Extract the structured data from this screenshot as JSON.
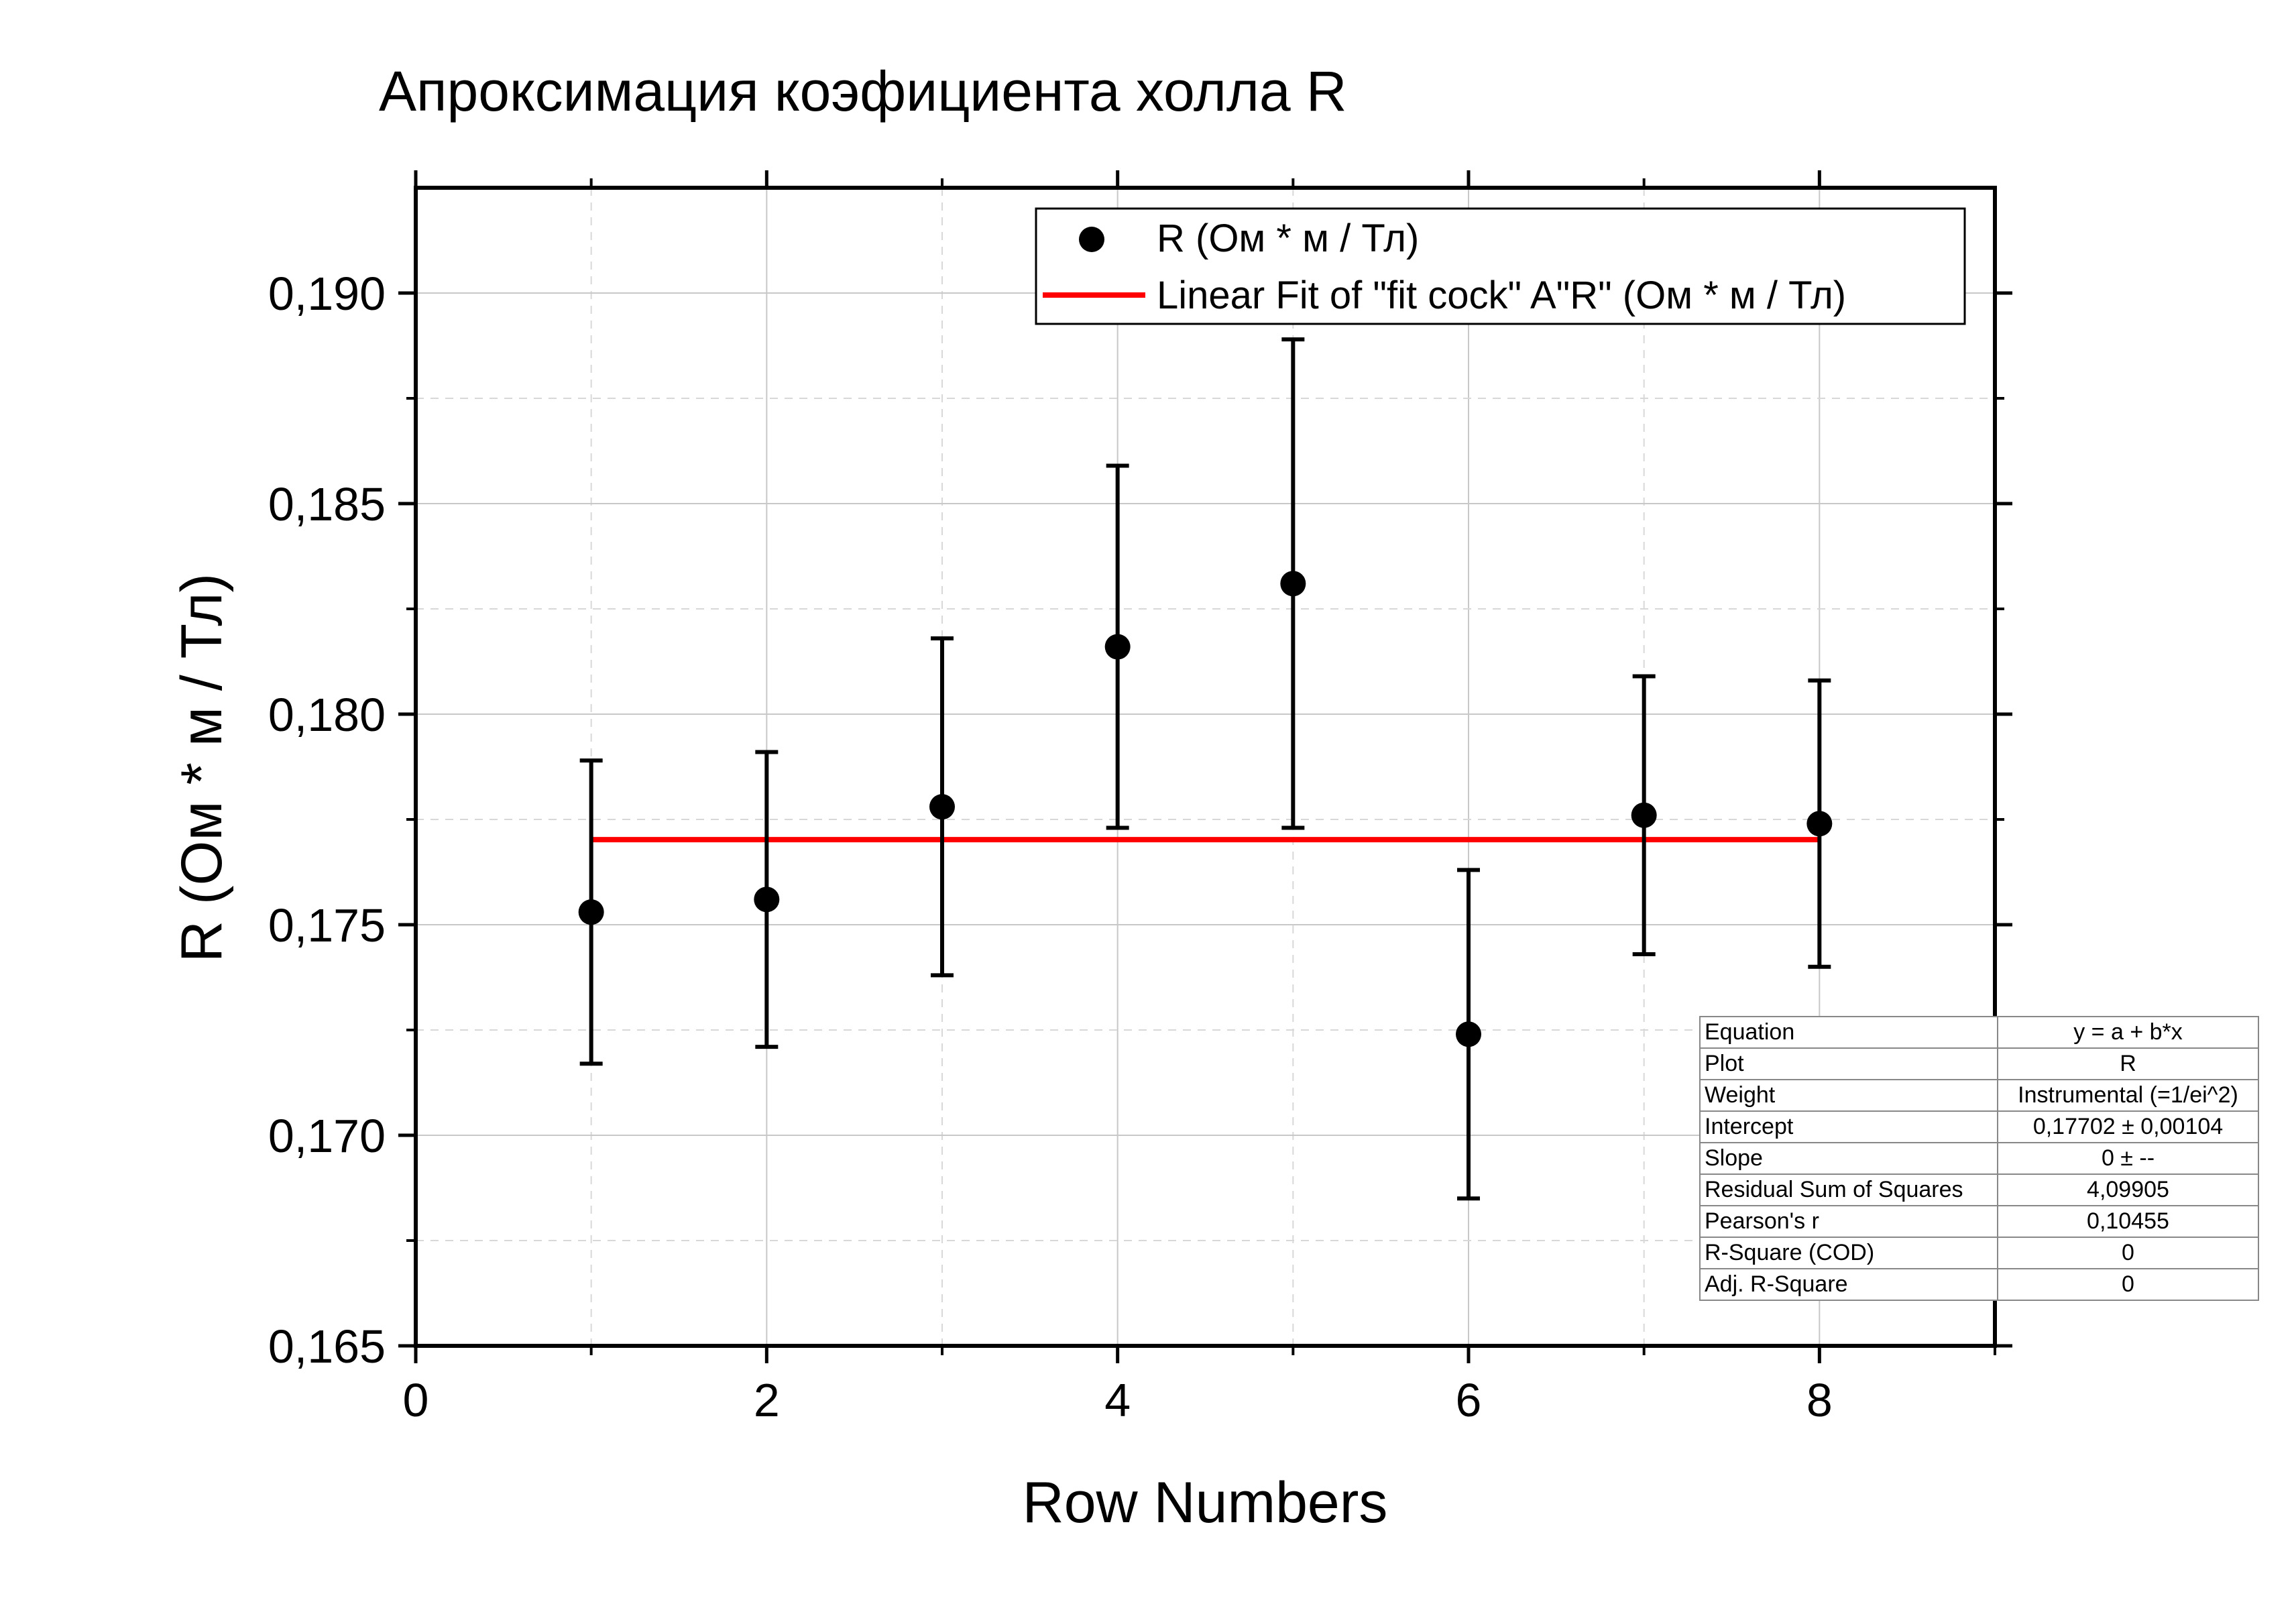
{
  "chart_data": {
    "type": "scatter",
    "title": "Апроксимация коэфициента холла R",
    "xlabel": "Row Numbers",
    "ylabel": "R (Ом * м / Тл)",
    "xlim": [
      0,
      9
    ],
    "ylim": [
      0.165,
      0.1925
    ],
    "x_ticks": [
      "0",
      "2",
      "4",
      "6",
      "8"
    ],
    "y_ticks": [
      "0,165",
      "0,170",
      "0,175",
      "0,180",
      "0,185",
      "0,190"
    ],
    "grid": true,
    "legend_position": "top-right",
    "series": [
      {
        "name": "R (Ом * м / Тл)",
        "kind": "points-with-error-bars",
        "color": "#000000",
        "x": [
          1,
          2,
          3,
          4,
          5,
          6,
          7,
          8
        ],
        "y": [
          0.1753,
          0.1756,
          0.1778,
          0.1816,
          0.1831,
          0.1724,
          0.1776,
          0.1774
        ],
        "error": [
          0.0036,
          0.0035,
          0.004,
          0.0043,
          0.0058,
          0.0039,
          0.0033,
          0.0034
        ]
      },
      {
        "name": "Linear Fit of \"fit cock\" A\"R\" (Ом * м / Тл)",
        "kind": "line",
        "color": "#ff0000",
        "x": [
          1,
          8
        ],
        "y": [
          0.17702,
          0.17702
        ]
      }
    ],
    "stats_table": [
      {
        "label": "Equation",
        "value": "y = a + b*x"
      },
      {
        "label": "Plot",
        "value": "R"
      },
      {
        "label": "Weight",
        "value": "Instrumental (=1/ei^2)"
      },
      {
        "label": "Intercept",
        "value": "0,17702 ± 0,00104"
      },
      {
        "label": "Slope",
        "value": "0 ± --"
      },
      {
        "label": "Residual Sum of Squares",
        "value": "4,09905"
      },
      {
        "label": "Pearson's r",
        "value": "0,10455"
      },
      {
        "label": "R-Square (COD)",
        "value": "0"
      },
      {
        "label": "Adj. R-Square",
        "value": "0"
      }
    ]
  }
}
